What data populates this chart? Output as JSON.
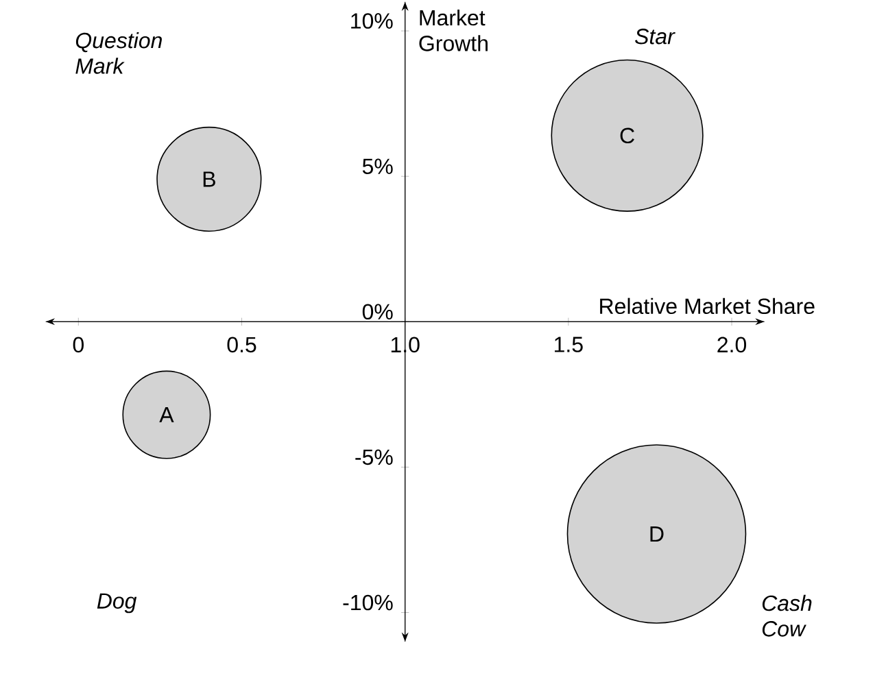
{
  "chart_data": {
    "type": "bubble",
    "xlabel": "Relative Market Share",
    "ylabel": "Market Growth",
    "series": [
      {
        "color": "#d3d3d3",
        "x": [
          0.27,
          0.4,
          1.68,
          1.77
        ],
        "values": [
          -3.2,
          4.9,
          6.4,
          -7.3
        ],
        "sizes": [
          0.24,
          0.34,
          0.72,
          1
        ]
      }
    ],
    "xlim": [
      -0.1,
      2.1
    ],
    "ylim": [
      -11,
      11
    ],
    "xticks": [
      0,
      0.5,
      {
        "value": 1,
        "label": "1.0"
      },
      1.5,
      {
        "value": 2,
        "label": "2.0"
      }
    ],
    "yticks": [
      {
        "value": -10,
        "label": "-10%"
      },
      {
        "value": -5,
        "label": "-5%"
      },
      {
        "value": 0,
        "label": "0%"
      },
      {
        "value": 5,
        "label": "5%"
      },
      {
        "value": 10,
        "label": "10%"
      }
    ],
    "annotations": [
      "Question Mark",
      "Star",
      "Dog",
      "Cash Cow",
      {
        "text": "A",
        "x": 0.27,
        "y": -3.2
      },
      {
        "text": "B",
        "x": 0.4,
        "y": 4.9
      },
      {
        "text": "C",
        "x": 1.68,
        "y": 6.4
      },
      {
        "text": "D",
        "x": 1.77,
        "y": -7.3
      }
    ],
    "grid": false
  }
}
